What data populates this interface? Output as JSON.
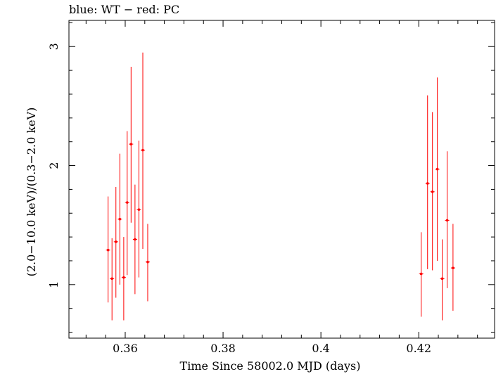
{
  "chart_data": {
    "type": "scatter",
    "title": "blue: WT − red: PC",
    "xlabel": "Time Since 58002.0 MJD (days)",
    "ylabel": "(2.0−10.0 keV)/(0.3−2.0 keV)",
    "xlim": [
      0.3485,
      0.4355
    ],
    "ylim": [
      0.55,
      3.22
    ],
    "x_ticks": [
      0.36,
      0.38,
      0.4,
      0.42
    ],
    "x_tick_labels": [
      "0.36",
      "0.38",
      "0.4",
      "0.42"
    ],
    "y_ticks": [
      1,
      2,
      3
    ],
    "y_tick_labels": [
      "1",
      "2",
      "3"
    ],
    "grid": false,
    "series": [
      {
        "name": "PC",
        "color": "#ff0000",
        "points": [
          {
            "x": 0.3565,
            "y": 1.29,
            "ylow": 0.85,
            "yhigh": 1.74
          },
          {
            "x": 0.3573,
            "y": 1.05,
            "ylow": 0.7,
            "yhigh": 1.39
          },
          {
            "x": 0.3581,
            "y": 1.36,
            "ylow": 0.89,
            "yhigh": 1.82
          },
          {
            "x": 0.3589,
            "y": 1.55,
            "ylow": 1.0,
            "yhigh": 2.1
          },
          {
            "x": 0.3597,
            "y": 1.06,
            "ylow": 0.7,
            "yhigh": 1.4
          },
          {
            "x": 0.3604,
            "y": 1.69,
            "ylow": 1.08,
            "yhigh": 2.29
          },
          {
            "x": 0.3612,
            "y": 2.18,
            "ylow": 1.52,
            "yhigh": 2.83
          },
          {
            "x": 0.362,
            "y": 1.38,
            "ylow": 0.92,
            "yhigh": 1.84
          },
          {
            "x": 0.3628,
            "y": 1.63,
            "ylow": 1.06,
            "yhigh": 2.21
          },
          {
            "x": 0.3636,
            "y": 2.13,
            "ylow": 1.3,
            "yhigh": 2.95
          },
          {
            "x": 0.3646,
            "y": 1.19,
            "ylow": 0.86,
            "yhigh": 1.51
          },
          {
            "x": 0.4205,
            "y": 1.09,
            "ylow": 0.73,
            "yhigh": 1.44
          },
          {
            "x": 0.4218,
            "y": 1.85,
            "ylow": 1.13,
            "yhigh": 2.59
          },
          {
            "x": 0.4228,
            "y": 1.78,
            "ylow": 1.12,
            "yhigh": 2.45
          },
          {
            "x": 0.4238,
            "y": 1.97,
            "ylow": 1.2,
            "yhigh": 2.74
          },
          {
            "x": 0.4248,
            "y": 1.05,
            "ylow": 0.7,
            "yhigh": 1.38
          },
          {
            "x": 0.4258,
            "y": 1.54,
            "ylow": 0.97,
            "yhigh": 2.12
          },
          {
            "x": 0.427,
            "y": 1.14,
            "ylow": 0.78,
            "yhigh": 1.51
          }
        ]
      }
    ]
  }
}
